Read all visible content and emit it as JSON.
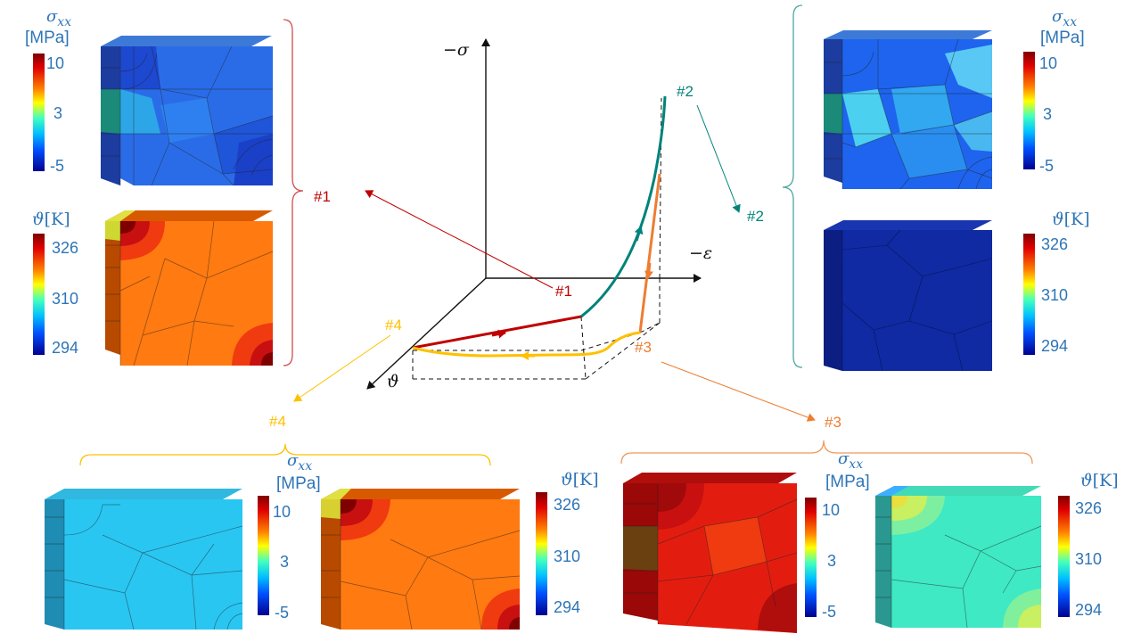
{
  "axes": {
    "sigma": "−σ",
    "epsilon": "−ε",
    "theta": "ϑ"
  },
  "colors": {
    "state1": "#c00000",
    "state2": "#00837a",
    "state3": "#ed7d31",
    "state4": "#ffc000",
    "label_blue": "#2e75b6",
    "stress_blue": "#1e64ee",
    "stress_light": "#31a8f0",
    "stress_teal": "#1b8a78",
    "stress_cyan": "#29c6f2",
    "stress_red": "#e21d10",
    "temp_orange": "#ff7a10",
    "temp_navy": "#0f2aa2",
    "temp_mint": "#3ee9c4",
    "temp_hot": "#c80f0f",
    "temp_yellow": "#d8e030"
  },
  "path_labels": {
    "one": "#1",
    "two": "#2",
    "three": "#3",
    "four": "#4"
  },
  "stress_legend": {
    "title_symbol": "σ",
    "title_subscript": "xx",
    "unit": "[MPa]",
    "ticks": [
      "10",
      "3",
      "-5"
    ]
  },
  "temperature_legend": {
    "title_symbol": "ϑ",
    "unit": "[K]",
    "ticks": [
      "326",
      "310",
      "294"
    ]
  },
  "states": [
    {
      "id": "#1",
      "stress_field": "blue, cooler corners",
      "temperature_field": "orange with hot corners"
    },
    {
      "id": "#2",
      "stress_field": "blue with light inner elements",
      "temperature_field": "uniform cold"
    },
    {
      "id": "#3",
      "stress_field": "red",
      "temperature_field": "mint with warm corners"
    },
    {
      "id": "#4",
      "stress_field": "uniform cyan",
      "temperature_field": "orange with hot corners"
    }
  ]
}
